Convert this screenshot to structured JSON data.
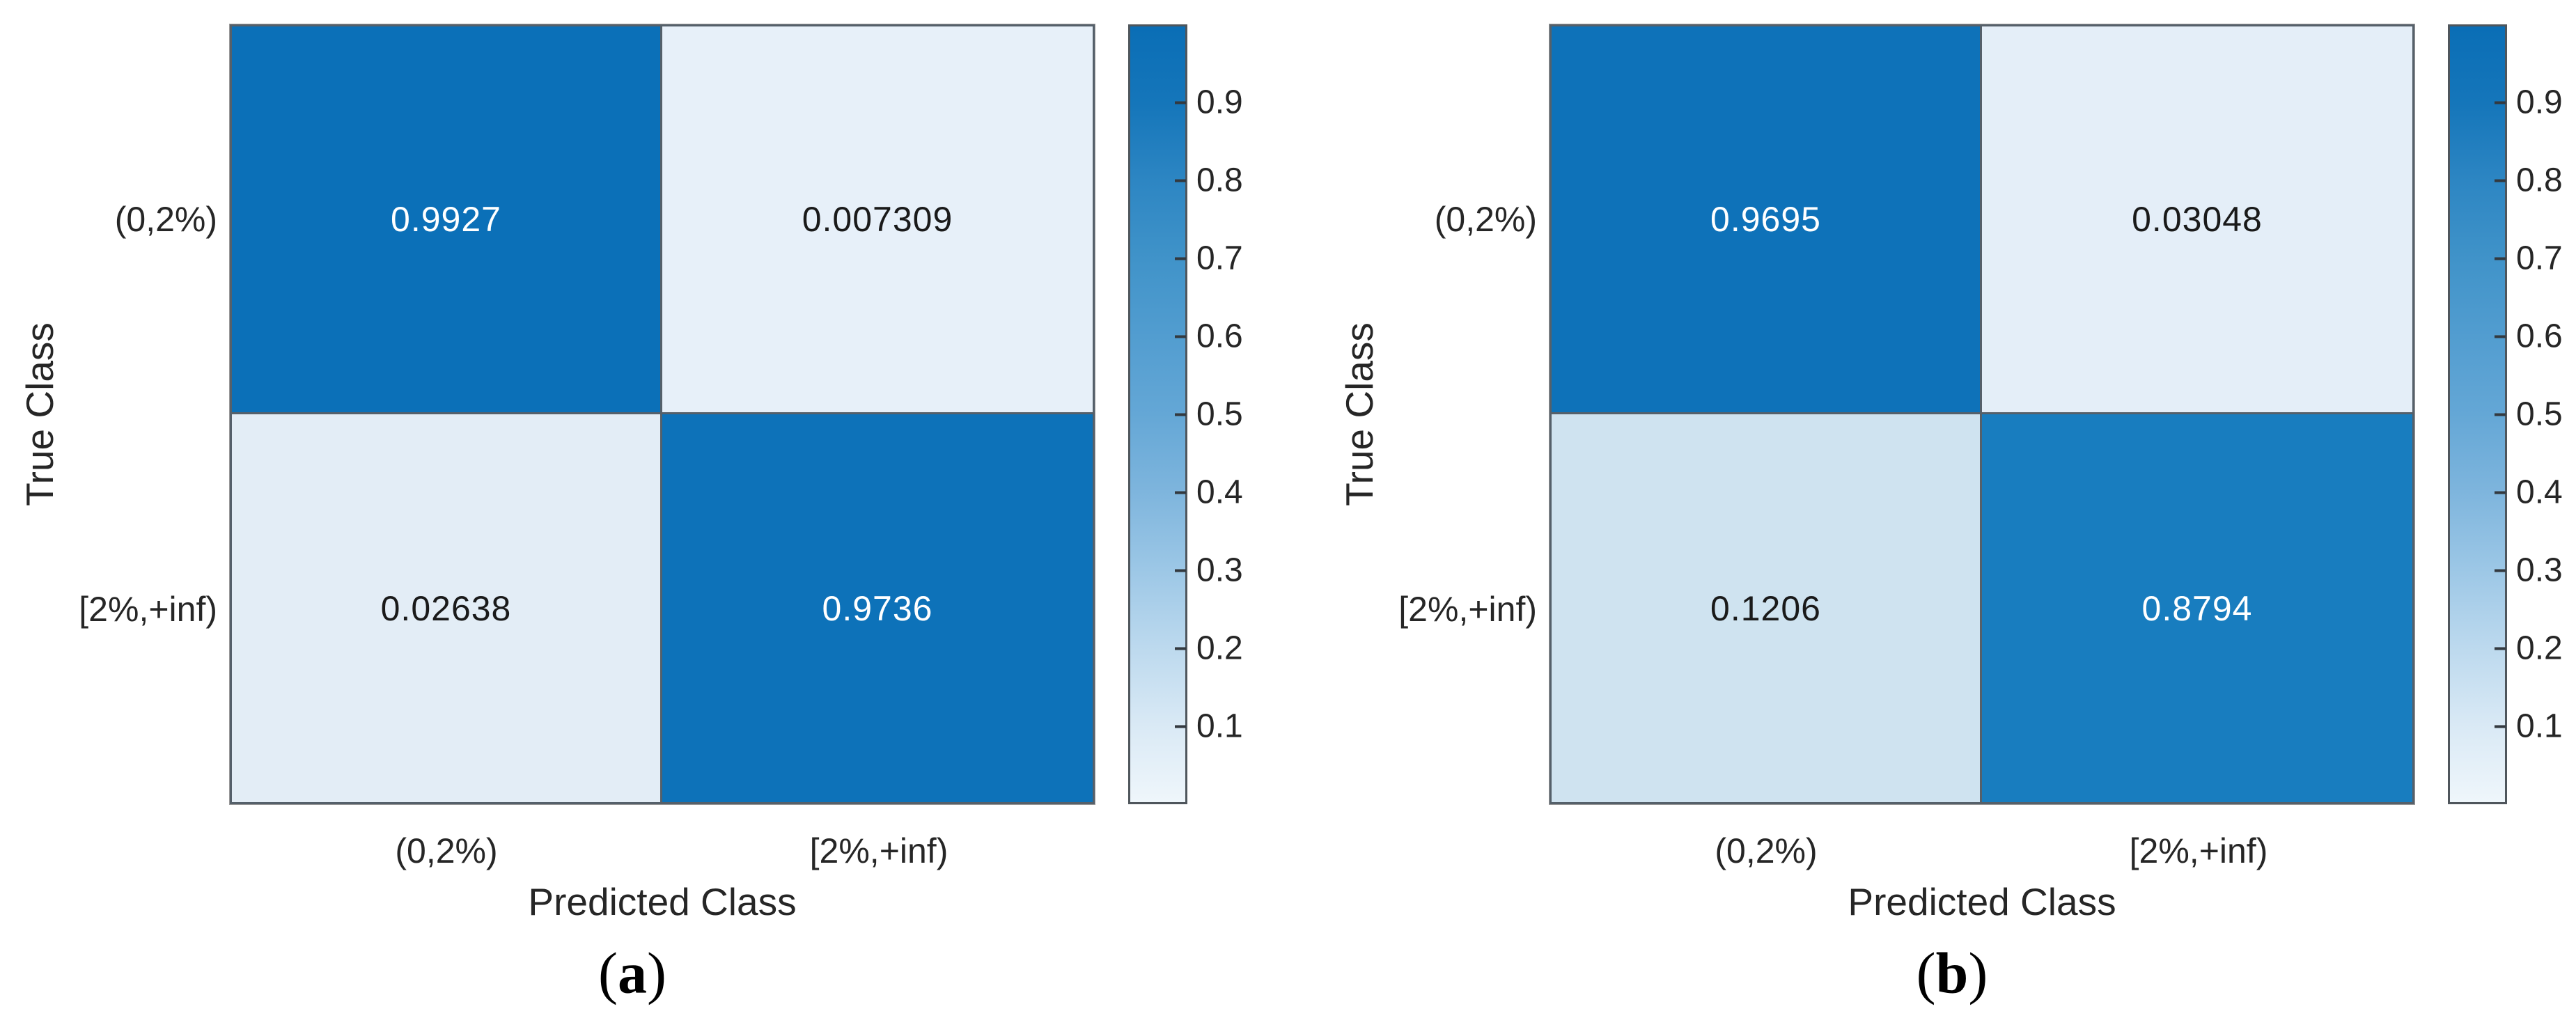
{
  "figure": {
    "y_axis_label": "True Class",
    "x_axis_label": "Predicted Class",
    "class_labels": [
      "(0,2%)",
      "[2%,+inf)"
    ],
    "colorbar_tick_labels": [
      "0.9",
      "0.8",
      "0.7",
      "0.6",
      "0.5",
      "0.4",
      "0.3",
      "0.2",
      "0.1"
    ],
    "colorbar_gradient_stops": [
      "#0a6eb6",
      "#1576ba",
      "#2d86c3",
      "#4093c9",
      "#529dd0",
      "#64a7d6",
      "#7eb5dd",
      "#9cc7e6",
      "#bcd9ee",
      "#d9e9f5",
      "#eff6fb"
    ],
    "accent_dark_blue": "#0b70b8",
    "accent_light_blue": "#e7f0f9",
    "grid_line_color": "#4f565c",
    "text_color": "#262626"
  },
  "panels": [
    {
      "caption_open": "(",
      "caption_letter": "a",
      "caption_close": ")",
      "cells": [
        {
          "value": "0.9927",
          "bg": "#0b70b8",
          "fg": "#ffffff"
        },
        {
          "value": "0.007309",
          "bg": "#e7f0f9",
          "fg": "#1a1a1a"
        },
        {
          "value": "0.02638",
          "bg": "#e3edf6",
          "fg": "#1a1a1a"
        },
        {
          "value": "0.9736",
          "bg": "#0d72b9",
          "fg": "#ffffff"
        }
      ]
    },
    {
      "caption_open": "(",
      "caption_letter": "b",
      "caption_close": ")",
      "cells": [
        {
          "value": "0.9695",
          "bg": "#0e72b9",
          "fg": "#ffffff"
        },
        {
          "value": "0.03048",
          "bg": "#e4eef8",
          "fg": "#1a1a1a"
        },
        {
          "value": "0.1206",
          "bg": "#cfe3f0",
          "fg": "#1a1a1a"
        },
        {
          "value": "0.8794",
          "bg": "#187dbf",
          "fg": "#ffffff"
        }
      ]
    }
  ],
  "chart_data": [
    {
      "type": "heatmap",
      "title": "(a)",
      "xlabel": "Predicted Class",
      "ylabel": "True Class",
      "x_categories": [
        "(0,2%)",
        "[2%,+inf)"
      ],
      "y_categories": [
        "(0,2%)",
        "[2%,+inf)"
      ],
      "values": [
        [
          0.9927,
          0.007309
        ],
        [
          0.02638,
          0.9736
        ]
      ],
      "colorbar_ticks": [
        0.9,
        0.8,
        0.7,
        0.6,
        0.5,
        0.4,
        0.3,
        0.2,
        0.1
      ],
      "colorbar_range": [
        0,
        1
      ],
      "colormap": "blues",
      "legend_position": "right-colorbar",
      "grid": false
    },
    {
      "type": "heatmap",
      "title": "(b)",
      "xlabel": "Predicted Class",
      "ylabel": "True Class",
      "x_categories": [
        "(0,2%)",
        "[2%,+inf)"
      ],
      "y_categories": [
        "(0,2%)",
        "[2%,+inf)"
      ],
      "values": [
        [
          0.9695,
          0.03048
        ],
        [
          0.1206,
          0.8794
        ]
      ],
      "colorbar_ticks": [
        0.9,
        0.8,
        0.7,
        0.6,
        0.5,
        0.4,
        0.3,
        0.2,
        0.1
      ],
      "colorbar_range": [
        0,
        1
      ],
      "colormap": "blues",
      "legend_position": "right-colorbar",
      "grid": false
    }
  ]
}
